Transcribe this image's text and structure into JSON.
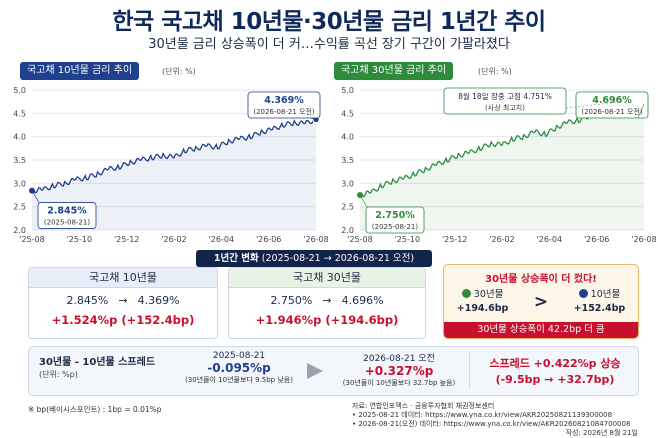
{
  "title": "한국 국고채 10년물·30년물 금리 1년간 추이",
  "subtitle": "30년물 금리 상승폭이 더 커…수익률 곡선 장기 구간이 가팔라졌다",
  "colors": {
    "navy": "#1f3f8f",
    "green": "#2e8b3c",
    "red": "#c8102e",
    "orange": "#e07a10",
    "dark": "#12244a"
  },
  "left_panel": {
    "header": "국고채 10년물 금리 추이",
    "unit": "(단위: %)"
  },
  "right_panel": {
    "header": "국고채 30년물 금리 추이",
    "unit": "(단위: %)"
  },
  "chart_data": [
    {
      "type": "line",
      "title": "국고채 10년물 금리 추이",
      "ylim": [
        2.0,
        5.0
      ],
      "yticks": [
        "5.0",
        "4.5",
        "4.0",
        "3.5",
        "3.0",
        "2.5",
        "2.0"
      ],
      "xticks": [
        "'25-08",
        "'25-10",
        "'25-12",
        "'26-02",
        "'26-04",
        "'26-06",
        "'26-08"
      ],
      "series": [
        {
          "values": [
            2.845,
            2.86,
            2.95,
            3.0,
            3.08,
            3.12,
            3.2,
            3.3,
            3.35,
            3.45,
            3.5,
            3.55,
            3.6,
            3.55,
            3.7,
            3.75,
            3.8,
            3.78,
            3.9,
            3.95,
            4.0,
            4.1,
            4.15,
            4.25,
            4.3,
            4.28,
            4.369
          ]
        }
      ],
      "annotations": [
        {
          "value": "2.845%",
          "label": "(2025-08-21)"
        },
        {
          "value": "4.369%",
          "label": "(2026-08-21 오전)"
        }
      ]
    },
    {
      "type": "line",
      "title": "국고채 30년물 금리 추이",
      "ylim": [
        2.0,
        5.0
      ],
      "yticks": [
        "5.0",
        "4.5",
        "4.0",
        "3.5",
        "3.0",
        "2.5",
        "2.0"
      ],
      "xticks": [
        "'25-08",
        "'25-10",
        "'25-12",
        "'26-02",
        "'26-04",
        "'26-06",
        "'26-08"
      ],
      "series": [
        {
          "values": [
            2.75,
            2.8,
            2.95,
            3.05,
            3.1,
            3.2,
            3.3,
            3.4,
            3.5,
            3.6,
            3.65,
            3.75,
            3.85,
            3.82,
            3.95,
            4.0,
            4.1,
            4.05,
            4.2,
            4.3,
            4.35,
            4.45,
            4.5,
            4.6,
            4.75,
            4.65,
            4.696
          ]
        }
      ],
      "annotations": [
        {
          "value": "2.750%",
          "label": "(2025-08-21)"
        },
        {
          "value": "4.696%",
          "label": "(2026-08-21 오전)"
        },
        {
          "value": "8월 18일 장중 고점 4.751%",
          "label": "(사상 최고치)"
        }
      ]
    }
  ],
  "change": {
    "header": "1년간 변화",
    "period": "(2025-08-21 → 2026-08-21 오전)",
    "bond10": {
      "label": "국고채 10년물",
      "from": "2.845%",
      "to": "4.369%",
      "pp": "+1.524%p",
      "bp": "(+152.4bp)"
    },
    "bond30": {
      "label": "국고채 30년물",
      "from": "2.750%",
      "to": "4.696%",
      "pp": "+1.946%p",
      "bp": "(+194.6bp)"
    },
    "compare": {
      "title": "30년물 상승폭이 더 컸다!",
      "b30_label": "30년물",
      "b30_value": "+194.6bp",
      "gt": ">",
      "b10_label": "10년물",
      "b10_value": "+152.4bp",
      "footer": "30년물 상승폭이 42.2bp 더 큼"
    }
  },
  "spread": {
    "title": "30년물 - 10년물 스프레드",
    "unit": "(단위: %p)",
    "date1": "2025-08-21",
    "val1": "-0.095%p",
    "note1": "(30년물이 10년물보다 9.5bp 낮음)",
    "date2": "2026-08-21 오전",
    "val2": "+0.327%p",
    "note2": "(30년물이 10년물보다 32.7bp 높음)",
    "result1": "스프레드 +0.422%p 상승",
    "result2": "(-9.5bp → +32.7bp)"
  },
  "footer": {
    "note": "※ bp(베이시스포인트) : 1bp = 0.01%p",
    "source1": "자료: 연합인포맥스 · 금융투자협회 채권정보센터",
    "source2": "• 2025-08-21 데이터: https://www.yna.co.kr/view/AKR20250821139300008",
    "source3": "• 2026-08-21(오전) 데이터: https://www.yna.co.kr/view/AKR20260821084700008",
    "date": "작성: 2026년 8월 21일"
  }
}
